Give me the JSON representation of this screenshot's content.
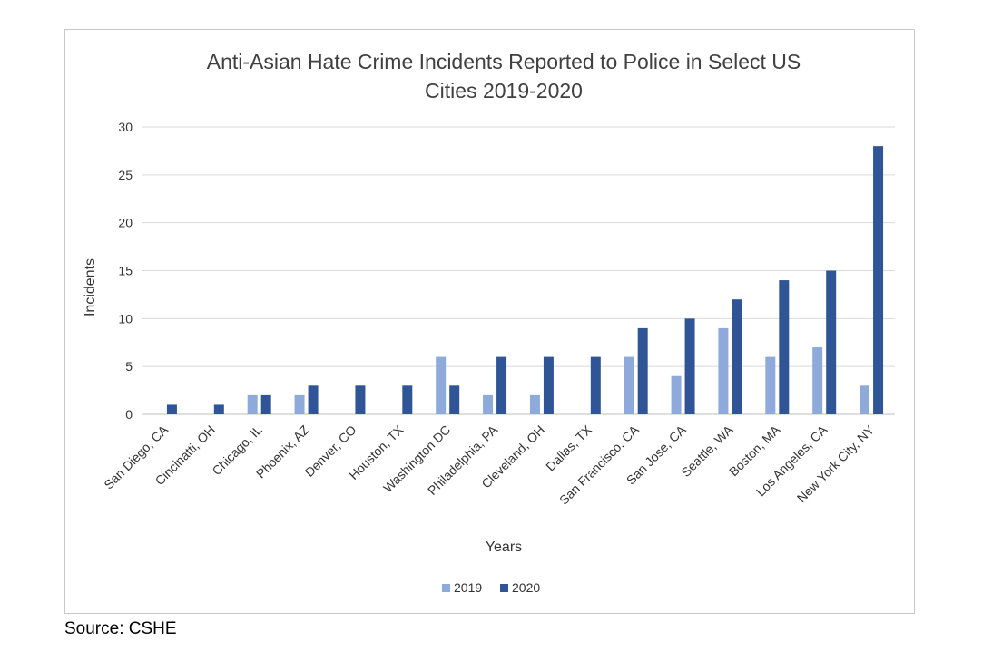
{
  "source": "Source: CSHE",
  "colors": {
    "y2019": "#8eaadb",
    "y2020": "#2f5597",
    "grid": "#d9d9d9"
  },
  "chart_data": {
    "type": "bar",
    "title_lines": [
      "Anti-Asian Hate Crime Incidents Reported to Police in Select US",
      "Cities 2019-2020"
    ],
    "xlabel": "Years",
    "ylabel": "Incidents",
    "ylim": [
      0,
      30
    ],
    "yticks": [
      0,
      5,
      10,
      15,
      20,
      25,
      30
    ],
    "grid": true,
    "legend_position": "bottom",
    "categories": [
      "San Diego, CA",
      "Cincinatti, OH",
      "Chicago, IL",
      "Phoenix, AZ",
      "Denver, CO",
      "Houston, TX",
      "Washington DC",
      "Philadelphia, PA",
      "Cleveland, OH",
      "Dallas, TX",
      "San Francisco, CA",
      "San Jose, CA",
      "Seattle, WA",
      "Boston, MA",
      "Los Angeles, CA",
      "New York City, NY"
    ],
    "series": [
      {
        "name": "2019",
        "values": [
          0,
          0,
          2,
          2,
          0,
          0,
          6,
          2,
          2,
          0,
          6,
          4,
          9,
          6,
          7,
          3
        ]
      },
      {
        "name": "2020",
        "values": [
          1,
          1,
          2,
          3,
          3,
          3,
          3,
          6,
          6,
          6,
          9,
          10,
          12,
          14,
          15,
          28
        ]
      }
    ]
  }
}
